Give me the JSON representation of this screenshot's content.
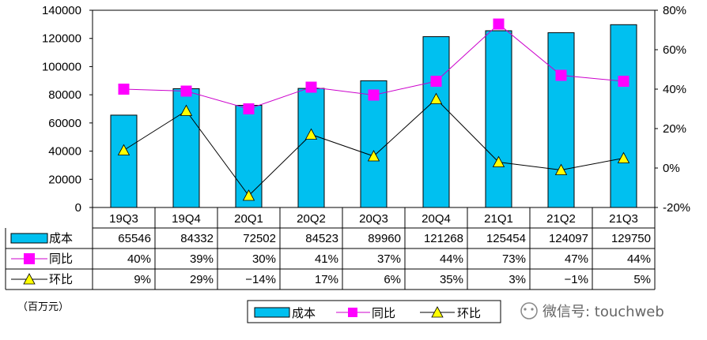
{
  "chart_data": {
    "type": "bar",
    "categories": [
      "19Q3",
      "19Q4",
      "20Q1",
      "20Q2",
      "20Q3",
      "20Q4",
      "21Q1",
      "21Q2",
      "21Q3"
    ],
    "series": [
      {
        "name": "成本",
        "type": "bar",
        "axis": "left",
        "values": [
          65546,
          84332,
          72502,
          84523,
          89960,
          121268,
          125454,
          124097,
          129750
        ]
      },
      {
        "name": "同比",
        "type": "line",
        "axis": "right",
        "values": [
          40,
          39,
          30,
          41,
          37,
          44,
          73,
          47,
          44
        ]
      },
      {
        "name": "环比",
        "type": "line",
        "axis": "right",
        "values": [
          9,
          29,
          -14,
          17,
          6,
          35,
          3,
          -1,
          5
        ]
      }
    ],
    "table_rows": [
      {
        "label": "成本",
        "cells": [
          "65546",
          "84332",
          "72502",
          "84523",
          "89960",
          "121268",
          "125454",
          "124097",
          "129750"
        ]
      },
      {
        "label": "同比",
        "cells": [
          "40%",
          "39%",
          "30%",
          "41%",
          "37%",
          "44%",
          "73%",
          "47%",
          "44%"
        ]
      },
      {
        "label": "环比",
        "cells": [
          "9%",
          "29%",
          "−14%",
          "17%",
          "6%",
          "35%",
          "3%",
          "−1%",
          "5%"
        ]
      }
    ],
    "left_axis": {
      "min": 0,
      "max": 140000,
      "step": 20000,
      "ticks": [
        "0",
        "20000",
        "40000",
        "60000",
        "80000",
        "100000",
        "120000",
        "140000"
      ]
    },
    "right_axis": {
      "min": -20,
      "max": 80,
      "step": 20,
      "ticks": [
        "-20%",
        "0%",
        "20%",
        "40%",
        "60%",
        "80%"
      ]
    },
    "unit_note": "（百万元）",
    "legend": [
      "成本",
      "同比",
      "环比"
    ],
    "watermark": "微信号: touchweb",
    "colors": {
      "bar": "#00c0f0",
      "bar_edge": "#000000",
      "yoy": "#cc00cc",
      "yoy_marker": "#ff00ff",
      "qoq": "#000000",
      "qoq_marker": "#ffff00"
    }
  }
}
